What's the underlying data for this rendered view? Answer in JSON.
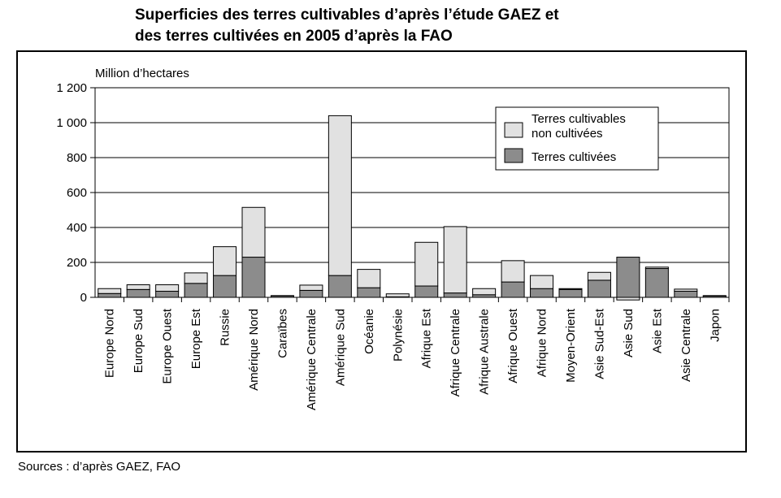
{
  "title_line1": "Superficies des terres cultivables d’après l’étude GAEZ et",
  "title_line2": "des terres cultivées en 2005 d’après la FAO",
  "source": "Sources : d’après GAEZ, FAO",
  "colors": {
    "cultivated": "#8c8c8c",
    "uncultivated": "#e1e1e1",
    "grid": "#000000"
  },
  "chart_data": {
    "type": "bar",
    "stacked": true,
    "ylabel": "Million d’hectares",
    "ylim": [
      0,
      1200
    ],
    "yticks": [
      0,
      200,
      400,
      600,
      800,
      1000,
      1200
    ],
    "ytick_labels": [
      "0",
      "200",
      "400",
      "600",
      "800",
      "1 000",
      "1 200"
    ],
    "grid": true,
    "legend_position": "top-right",
    "categories": [
      "Europe Nord",
      "Europe Sud",
      "Europe Ouest",
      "Europe Est",
      "Russie",
      "Amérique Nord",
      "Caraïbes",
      "Amérique Centrale",
      "Amérique Sud",
      "Océanie",
      "Polynésie",
      "Afrique Est",
      "Afrique Centrale",
      "Afrique Australe",
      "Afrique Ouest",
      "Afrique Nord",
      "Moyen-Orient",
      "Asie Sud-Est",
      "Asie Sud",
      "Asie Est",
      "Asie Centrale",
      "Japon"
    ],
    "series": [
      {
        "name": "Terres cultivées",
        "values": [
          22,
          45,
          35,
          80,
          125,
          230,
          8,
          40,
          125,
          55,
          3,
          65,
          25,
          15,
          88,
          50,
          45,
          98,
          230,
          165,
          35,
          7
        ]
      },
      {
        "name": "Terres cultivables non cultivées",
        "values": [
          28,
          27,
          37,
          60,
          165,
          285,
          2,
          30,
          915,
          105,
          17,
          250,
          380,
          35,
          122,
          75,
          5,
          45,
          -15,
          8,
          12,
          3
        ]
      }
    ]
  }
}
